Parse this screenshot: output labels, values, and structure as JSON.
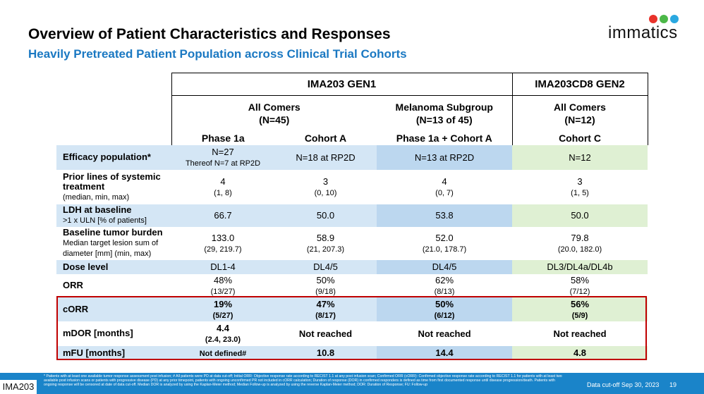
{
  "slide": {
    "title": "Overview of Patient Characteristics and Responses",
    "subtitle": "Heavily Pretreated Patient Population across Clinical Trial Cohorts"
  },
  "logo": {
    "text": "immatics",
    "colors": [
      "#e8322b",
      "#4cb848",
      "#2aa8e0"
    ]
  },
  "table": {
    "group_headers": [
      "IMA203 GEN1",
      "IMA203CD8 GEN2"
    ],
    "subgroups": [
      {
        "name": "All Comers",
        "n": "(N=45)"
      },
      {
        "name": "Melanoma Subgroup",
        "n": "(N=13 of 45)"
      },
      {
        "name": "All Comers",
        "n": "(N=12)"
      }
    ],
    "columns": [
      "Phase 1a",
      "Cohort A",
      "Phase 1a + Cohort A",
      "Cohort C"
    ],
    "rows": [
      {
        "label": "Efficacy population*",
        "label_sub": "",
        "cells": [
          {
            "main": "N=27",
            "sub": "Thereof N=7 at RP2D"
          },
          {
            "main": "N=18 at RP2D",
            "sub": ""
          },
          {
            "main": "N=13 at RP2D",
            "sub": ""
          },
          {
            "main": "N=12",
            "sub": ""
          }
        ]
      },
      {
        "label": "Prior lines of systemic treatment",
        "label_sub": "(median, min, max)",
        "cells": [
          {
            "main": "4",
            "sub": "(1, 8)"
          },
          {
            "main": "3",
            "sub": "(0, 10)"
          },
          {
            "main": "4",
            "sub": "(0, 7)"
          },
          {
            "main": "3",
            "sub": "(1, 5)"
          }
        ]
      },
      {
        "label": "LDH at baseline",
        "label_sub": ">1 x ULN [% of patients]",
        "cells": [
          {
            "main": "66.7",
            "sub": ""
          },
          {
            "main": "50.0",
            "sub": ""
          },
          {
            "main": "53.8",
            "sub": ""
          },
          {
            "main": "50.0",
            "sub": ""
          }
        ]
      },
      {
        "label": "Baseline tumor burden",
        "label_sub": "Median target lesion sum of diameter [mm] (min, max)",
        "cells": [
          {
            "main": "133.0",
            "sub": "(29, 219.7)"
          },
          {
            "main": "58.9",
            "sub": "(21, 207.3)"
          },
          {
            "main": "52.0",
            "sub": "(21.0, 178.7)"
          },
          {
            "main": "79.8",
            "sub": "(20.0, 182.0)"
          }
        ]
      },
      {
        "label": "Dose level",
        "label_sub": "",
        "cells": [
          {
            "main": "DL1-4",
            "sub": ""
          },
          {
            "main": "DL4/5",
            "sub": ""
          },
          {
            "main": "DL4/5",
            "sub": ""
          },
          {
            "main": "DL3/DL4a/DL4b",
            "sub": ""
          }
        ]
      },
      {
        "label": "ORR",
        "label_sub": "",
        "cells": [
          {
            "main": "48%",
            "sub": "(13/27)"
          },
          {
            "main": "50%",
            "sub": "(9/18)"
          },
          {
            "main": "62%",
            "sub": "(8/13)"
          },
          {
            "main": "58%",
            "sub": "(7/12)"
          }
        ]
      },
      {
        "label": "cORR",
        "label_sub": "",
        "cells": [
          {
            "main": "19%",
            "sub": "(5/27)"
          },
          {
            "main": "47%",
            "sub": "(8/17)"
          },
          {
            "main": "50%",
            "sub": "(6/12)"
          },
          {
            "main": "56%",
            "sub": "(5/9)"
          }
        ]
      },
      {
        "label": "mDOR [months]",
        "label_sub": "",
        "cells": [
          {
            "main": "4.4",
            "sub": "(2.4, 23.0)"
          },
          {
            "main": "Not reached",
            "sub": ""
          },
          {
            "main": "Not reached",
            "sub": ""
          },
          {
            "main": "Not reached",
            "sub": ""
          }
        ]
      },
      {
        "label": "mFU [months]",
        "label_sub": "",
        "cells": [
          {
            "main": "Not defined#",
            "sub": ""
          },
          {
            "main": "10.8",
            "sub": ""
          },
          {
            "main": "14.4",
            "sub": ""
          },
          {
            "main": "4.8",
            "sub": ""
          }
        ]
      }
    ]
  },
  "footer": {
    "tag": "IMA203",
    "footnote": "* Patients with at least one available tumor response assessment post infusion; # All patients were PD at data cut-off; Initial ORR: Objective response rate according to RECIST 1.1 at any post infusion scan; Confirmed ORR (cORR): Confirmed objective response rate according to RECIST 1.1 for patients with at least two available post infusion scans or patients with progressive disease (PD) at any prior timepoint, patients with ongoing unconfirmed PR not included in cORR calculation; Duration of response (DOR) in confirmed responders is defined as time from first documented response until disease progression/death. Patients with ongoing response will be censored at date of data cut-off. Median DOR is analyzed by using the Kaplan-Meier method; Median Follow-up is analyzed by using the reverse Kaplan-Meier method; DOR: Duration of Response; FU: Follow-up",
    "cutoff": "Data cut-off Sep 30, 2023",
    "page": "19"
  }
}
